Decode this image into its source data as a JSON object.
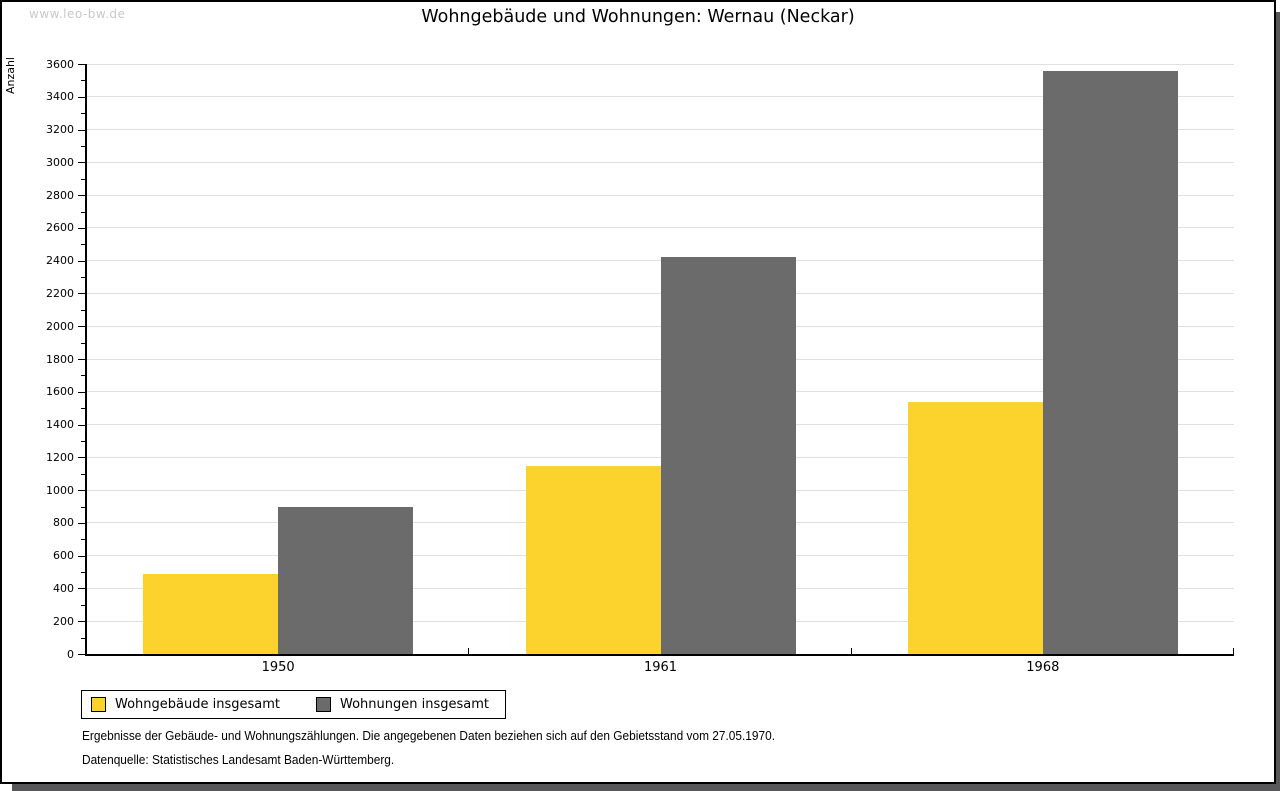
{
  "watermark": "www.leo-bw.de",
  "title": "Wohngebäude und Wohnungen: Wernau (Neckar)",
  "chart_data": {
    "type": "bar",
    "title": "Wohngebäude und Wohnungen: Wernau (Neckar)",
    "xlabel": "",
    "ylabel": "Anzahl",
    "categories": [
      "1950",
      "1961",
      "1968"
    ],
    "series": [
      {
        "name": "Wohngebäude insgesamt",
        "color": "#fcd32d",
        "values": [
          490,
          1150,
          1540
        ]
      },
      {
        "name": "Wohnungen insgesamt",
        "color": "#6b6b6b",
        "values": [
          900,
          2420,
          3560
        ]
      }
    ],
    "ylim": [
      0,
      3600
    ],
    "y_major_step": 200,
    "y_minor_step": 100,
    "grid": "horizontal-major",
    "legend_position": "bottom-left"
  },
  "footer": {
    "line1": "Ergebnisse der Gebäude- und Wohnungszählungen. Die angegebenen Daten beziehen sich auf den Gebietsstand vom 27.05.1970.",
    "line2": "Datenquelle: Statistisches Landesamt Baden-Württemberg."
  },
  "colors": {
    "grid": "#e0e0e0",
    "axis": "#000000",
    "watermark": "#c9c9c9",
    "shadow": "#58585a",
    "background": "#ffffff"
  }
}
